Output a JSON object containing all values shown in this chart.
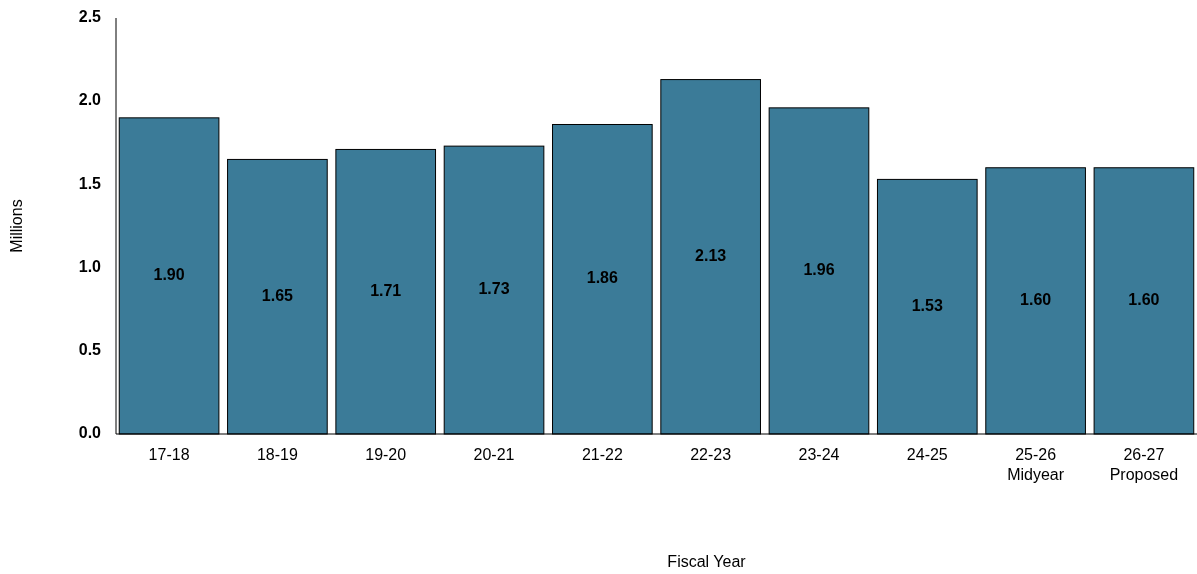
{
  "chart_data": {
    "type": "bar",
    "xlabel": "Fiscal Year",
    "ylabel": "Millions",
    "categories": [
      "17-18",
      "18-19",
      "19-20",
      "20-21",
      "21-22",
      "22-23",
      "23-24",
      "24-25",
      "25-26\nMidyear",
      "26-27\nProposed"
    ],
    "values": [
      1.9,
      1.65,
      1.71,
      1.73,
      1.86,
      2.13,
      1.96,
      1.53,
      1.6,
      1.6
    ],
    "color": "#3b7b98",
    "ylim": [
      0,
      2.5
    ],
    "yticks": [
      {
        "value": 0,
        "label": "0.0"
      },
      {
        "value": 0.5,
        "label": "0.5"
      },
      {
        "value": 1,
        "label": "1.0"
      },
      {
        "value": 1.5,
        "label": "1.5"
      },
      {
        "value": 2,
        "label": "2.0"
      },
      {
        "value": 2.5,
        "label": "2.5"
      }
    ],
    "value_labels": [
      "1.90",
      "1.65",
      "1.71",
      "1.73",
      "1.86",
      "2.13",
      "1.96",
      "1.53",
      "1.60",
      "1.60"
    ],
    "grid": false
  }
}
